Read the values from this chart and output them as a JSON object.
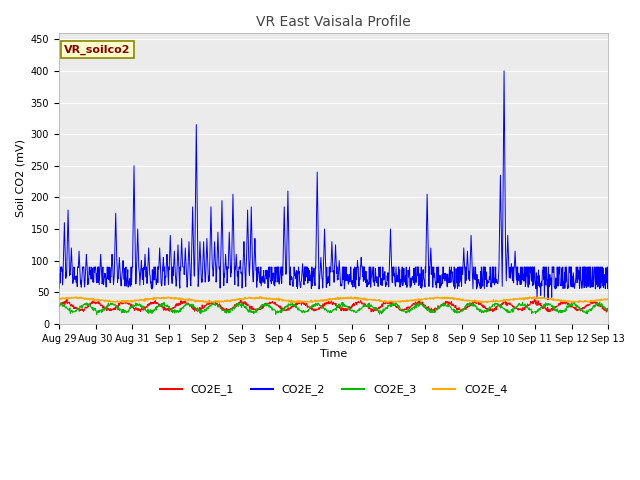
{
  "title": "VR East Vaisala Profile",
  "xlabel": "Time",
  "ylabel": "Soil CO2 (mV)",
  "annotation": "VR_soilco2",
  "ylim": [
    0,
    460
  ],
  "yticks": [
    0,
    50,
    100,
    150,
    200,
    250,
    300,
    350,
    400,
    450
  ],
  "xtick_labels": [
    "Aug 29",
    "Aug 30",
    "Aug 31",
    "Sep 1",
    "Sep 2",
    "Sep 3",
    "Sep 4",
    "Sep 5",
    "Sep 6",
    "Sep 7",
    "Sep 8",
    "Sep 9",
    "Sep 10",
    "Sep 11",
    "Sep 12",
    "Sep 13"
  ],
  "colors": {
    "CO2E_1": "#ff0000",
    "CO2E_2": "#0000ff",
    "CO2E_3": "#00bb00",
    "CO2E_4": "#ffaa00"
  },
  "fig_bg": "#ffffff",
  "plot_bg": "#ebebeb",
  "grid_color": "#ffffff",
  "title_fontsize": 10,
  "label_fontsize": 8,
  "tick_fontsize": 7,
  "annot_fontsize": 8,
  "legend_fontsize": 8
}
